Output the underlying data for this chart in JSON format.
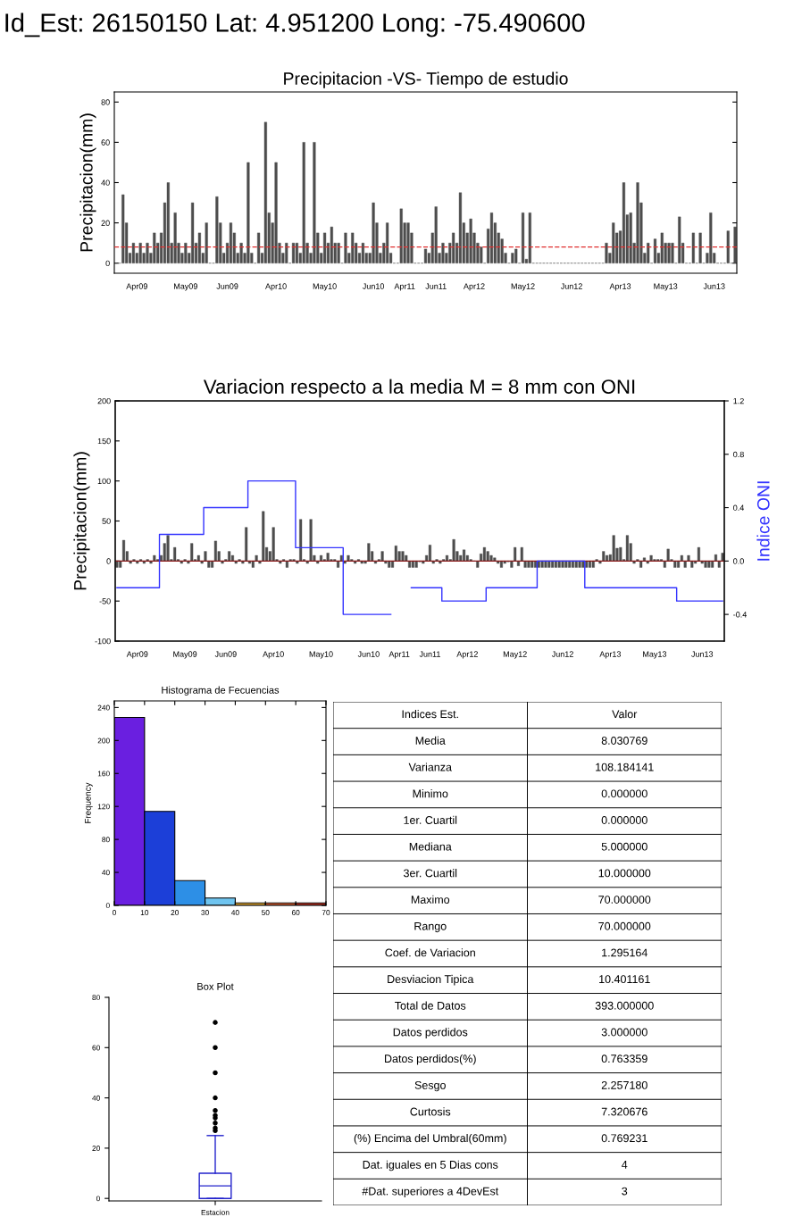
{
  "chart_data": [
    {
      "type": "bar",
      "title": "Precipitacion -VS- Tiempo de estudio",
      "ylabel": "Precipitacion(mm)",
      "annotations": [
        "Id_Est: 26150150 Lat: 4.951200 Long: -75.490600"
      ],
      "categories": [
        null,
        null,
        null,
        null,
        null,
        null,
        "Apr09",
        null,
        null,
        null,
        null,
        null,
        null,
        null,
        null,
        null,
        null,
        null,
        null,
        null,
        "May09",
        null,
        null,
        null,
        null,
        null,
        null,
        null,
        null,
        null,
        null,
        null,
        "Jun09",
        null,
        null,
        null,
        null,
        null,
        null,
        null,
        null,
        null,
        null,
        null,
        null,
        null,
        "Apr10",
        null,
        null,
        null,
        null,
        null,
        null,
        null,
        null,
        null,
        null,
        null,
        null,
        null,
        "May10",
        null,
        null,
        null,
        null,
        null,
        null,
        null,
        null,
        null,
        null,
        null,
        null,
        null,
        "Jun10",
        null,
        null,
        null,
        null,
        null,
        null,
        null,
        null,
        "Apr11",
        null,
        null,
        null,
        null,
        null,
        null,
        null,
        null,
        "Jun11",
        null,
        null,
        null,
        null,
        null,
        null,
        null,
        null,
        null,
        null,
        "Apr12",
        null,
        null,
        null,
        null,
        null,
        null,
        null,
        null,
        null,
        null,
        null,
        null,
        null,
        "May12",
        null,
        null,
        null,
        null,
        null,
        null,
        null,
        null,
        null,
        null,
        null,
        null,
        null,
        "Jun12",
        null,
        null,
        null,
        null,
        null,
        null,
        null,
        null,
        null,
        null,
        null,
        null,
        null,
        "Apr13",
        null,
        null,
        null,
        null,
        null,
        null,
        null,
        null,
        null,
        null,
        null,
        null,
        "May13",
        null,
        null,
        null,
        null,
        null,
        null,
        null,
        null,
        null,
        null,
        null,
        null,
        null,
        "Jun13",
        null,
        null,
        null,
        null,
        null,
        null
      ],
      "values": [
        0,
        0,
        34,
        20,
        5,
        10,
        5,
        10,
        5,
        10,
        5,
        15,
        10,
        15,
        30,
        40,
        10,
        25,
        10,
        5,
        10,
        5,
        30,
        10,
        15,
        5,
        20,
        0,
        0,
        33,
        20,
        5,
        10,
        20,
        15,
        5,
        10,
        5,
        50,
        5,
        0,
        15,
        5,
        70,
        25,
        20,
        50,
        10,
        5,
        10,
        0,
        10,
        10,
        5,
        60,
        10,
        5,
        60,
        15,
        5,
        15,
        10,
        18,
        10,
        10,
        0,
        15,
        5,
        15,
        10,
        5,
        10,
        5,
        5,
        30,
        20,
        5,
        10,
        20,
        5,
        0,
        0,
        27,
        20,
        20,
        15,
        0,
        0,
        0,
        7,
        5,
        15,
        28,
        5,
        10,
        5,
        10,
        15,
        10,
        35,
        20,
        15,
        22,
        15,
        10,
        8,
        0,
        17,
        25,
        20,
        15,
        12,
        5,
        0,
        5,
        7,
        0,
        25,
        2,
        25,
        0,
        0,
        0,
        0,
        0,
        0,
        0,
        0,
        0,
        0,
        0,
        0,
        0,
        0,
        0,
        0,
        0,
        0,
        0,
        0,
        0,
        10,
        5,
        20,
        15,
        16,
        40,
        24,
        25,
        10,
        40,
        30,
        5,
        10,
        0,
        12,
        5,
        15,
        10,
        10,
        10,
        0,
        23,
        10,
        0,
        0,
        15,
        0,
        15,
        0,
        5,
        25,
        5,
        0,
        0,
        0,
        16,
        0,
        18
      ],
      "color": "#4d4d4d",
      "ylim": [
        -5,
        85
      ],
      "yticks": [
        0,
        20,
        40,
        60,
        80
      ],
      "ref_lines": [
        {
          "axis": "y",
          "value": 8,
          "color": "#e03030",
          "line_style": "dashed"
        }
      ],
      "grid": false,
      "legend": false
    },
    {
      "type": "bar",
      "title": "Variacion respecto a la media M = 8 mm con ONI",
      "ylabel": "Precipitacion(mm)",
      "y2label": "Indice ONI",
      "categories": [
        null,
        null,
        null,
        null,
        null,
        null,
        "Apr09",
        null,
        null,
        null,
        null,
        null,
        null,
        null,
        null,
        null,
        null,
        null,
        null,
        null,
        "May09",
        null,
        null,
        null,
        null,
        null,
        null,
        null,
        null,
        null,
        null,
        null,
        "Jun09",
        null,
        null,
        null,
        null,
        null,
        null,
        null,
        null,
        null,
        null,
        null,
        null,
        null,
        "Apr10",
        null,
        null,
        null,
        null,
        null,
        null,
        null,
        null,
        null,
        null,
        null,
        null,
        null,
        "May10",
        null,
        null,
        null,
        null,
        null,
        null,
        null,
        null,
        null,
        null,
        null,
        null,
        null,
        "Jun10",
        null,
        null,
        null,
        null,
        null,
        null,
        null,
        null,
        "Apr11",
        null,
        null,
        null,
        null,
        null,
        null,
        null,
        null,
        "Jun11",
        null,
        null,
        null,
        null,
        null,
        null,
        null,
        null,
        null,
        null,
        "Apr12",
        null,
        null,
        null,
        null,
        null,
        null,
        null,
        null,
        null,
        null,
        null,
        null,
        null,
        "May12",
        null,
        null,
        null,
        null,
        null,
        null,
        null,
        null,
        null,
        null,
        null,
        null,
        null,
        "Jun12",
        null,
        null,
        null,
        null,
        null,
        null,
        null,
        null,
        null,
        null,
        null,
        null,
        null,
        "Apr13",
        null,
        null,
        null,
        null,
        null,
        null,
        null,
        null,
        null,
        null,
        null,
        null,
        "May13",
        null,
        null,
        null,
        null,
        null,
        null,
        null,
        null,
        null,
        null,
        null,
        null,
        null,
        "Jun13",
        null,
        null,
        null,
        null,
        null,
        null
      ],
      "series": [
        {
          "type": "bar",
          "color": "#4d4d4d",
          "values": [
            -8,
            -8,
            26,
            12,
            -3,
            2,
            -3,
            2,
            -3,
            2,
            -3,
            7,
            2,
            7,
            22,
            32,
            2,
            17,
            2,
            -3,
            2,
            -3,
            22,
            2,
            7,
            -3,
            12,
            -8,
            -8,
            25,
            12,
            -3,
            2,
            12,
            7,
            -3,
            2,
            -3,
            42,
            -3,
            -8,
            7,
            -3,
            62,
            17,
            12,
            42,
            2,
            -3,
            2,
            -8,
            2,
            2,
            -3,
            52,
            2,
            -3,
            52,
            7,
            -3,
            7,
            2,
            10,
            2,
            2,
            -8,
            7,
            -3,
            7,
            2,
            -3,
            2,
            -3,
            -3,
            22,
            12,
            -3,
            2,
            12,
            -3,
            -8,
            -8,
            19,
            12,
            12,
            7,
            -8,
            -8,
            -8,
            -1,
            -3,
            7,
            20,
            -3,
            2,
            -3,
            2,
            7,
            2,
            27,
            12,
            7,
            14,
            7,
            2,
            0,
            -8,
            9,
            17,
            12,
            7,
            4,
            -3,
            -8,
            -3,
            -1,
            -8,
            17,
            -6,
            17,
            -8,
            -8,
            -8,
            -8,
            -8,
            -8,
            -8,
            -8,
            -8,
            -8,
            -8,
            -8,
            -8,
            -8,
            -8,
            -8,
            -8,
            -8,
            -8,
            -8,
            -8,
            2,
            -3,
            12,
            7,
            8,
            32,
            16,
            17,
            2,
            32,
            22,
            -3,
            2,
            -8,
            4,
            -3,
            7,
            2,
            2,
            2,
            -8,
            15,
            2,
            -8,
            -8,
            7,
            -8,
            7,
            -8,
            -3,
            17,
            -3,
            -8,
            -8,
            -8,
            8,
            -8,
            10
          ]
        },
        {
          "type": "step",
          "axis": "y2",
          "color": "#3333ff",
          "values": [
            -0.2,
            -0.2,
            -0.2,
            -0.2,
            -0.2,
            -0.2,
            -0.2,
            -0.2,
            -0.2,
            -0.2,
            -0.2,
            -0.2,
            -0.2,
            0.2,
            0.2,
            0.2,
            0.2,
            0.2,
            0.2,
            0.2,
            0.2,
            0.2,
            0.2,
            0.2,
            0.2,
            0.2,
            0.4,
            0.4,
            0.4,
            0.4,
            0.4,
            0.4,
            0.4,
            0.4,
            0.4,
            0.4,
            0.4,
            0.4,
            0.4,
            0.6,
            0.6,
            0.6,
            0.6,
            0.6,
            0.6,
            0.6,
            0.6,
            0.6,
            0.6,
            0.6,
            0.6,
            0.6,
            0.6,
            0.1,
            0.1,
            0.1,
            0.1,
            0.1,
            0.1,
            0.1,
            0.1,
            0.1,
            0.1,
            0.1,
            0.1,
            0.1,
            0.1,
            -0.4,
            -0.4,
            -0.4,
            -0.4,
            -0.4,
            -0.4,
            -0.4,
            -0.4,
            -0.4,
            -0.4,
            -0.4,
            -0.4,
            -0.4,
            -0.4,
            null,
            null,
            null,
            null,
            null,
            null,
            -0.2,
            -0.2,
            -0.2,
            -0.2,
            -0.2,
            -0.2,
            -0.2,
            -0.2,
            -0.2,
            -0.3,
            -0.3,
            -0.3,
            -0.3,
            -0.3,
            -0.3,
            -0.3,
            -0.3,
            -0.3,
            -0.3,
            -0.3,
            -0.3,
            -0.3,
            -0.2,
            -0.2,
            -0.2,
            -0.2,
            -0.2,
            -0.2,
            -0.2,
            -0.2,
            -0.2,
            -0.2,
            -0.2,
            -0.2,
            -0.2,
            -0.2,
            -0.2,
            0.0,
            0.0,
            0.0,
            0.0,
            0.0,
            0.0,
            0.0,
            0.0,
            0.0,
            0.0,
            0.0,
            0.0,
            0.0,
            0.0,
            -0.2,
            -0.2,
            -0.2,
            -0.2,
            -0.2,
            -0.2,
            -0.2,
            -0.2,
            -0.2,
            -0.2,
            -0.2,
            -0.2,
            -0.2,
            -0.2,
            -0.2,
            -0.2,
            -0.2,
            -0.2,
            -0.2,
            -0.2,
            -0.2,
            -0.2,
            -0.2,
            -0.2,
            -0.2,
            -0.2,
            -0.2,
            -0.3,
            -0.3,
            -0.3,
            -0.3,
            -0.3,
            -0.3,
            -0.3,
            -0.3,
            -0.3,
            -0.3,
            -0.3,
            -0.3,
            -0.3,
            -0.3
          ]
        }
      ],
      "ylim": [
        -100,
        200
      ],
      "yticks": [
        -100,
        -50,
        0,
        50,
        100,
        150,
        200
      ],
      "y2lim": [
        -0.6,
        1.2
      ],
      "y2ticks": [
        -0.4,
        {
          "value": 0.0,
          "label": "0.0"
        },
        0.4,
        0.8,
        1.2
      ],
      "ref_lines": [
        {
          "axis": "y",
          "value": 0,
          "color": "#8b1a1a",
          "line_style": "solid"
        }
      ],
      "grid": false,
      "legend": false
    },
    {
      "type": "histogram",
      "title": "Histograma de Fecuencias",
      "ylabel": "Frequency",
      "bins": [
        0,
        10,
        20,
        30,
        40,
        50,
        60,
        70
      ],
      "values": [
        228,
        114,
        30,
        9,
        3,
        3,
        3
      ],
      "colors": [
        "#6a1fe0",
        "#1c3fd8",
        "#2d8fe6",
        "#6fc4ef",
        "#f0b030",
        "#e06030",
        "#c03020"
      ],
      "xlim": [
        0,
        70
      ],
      "xticks": [
        0,
        10,
        20,
        30,
        40,
        50,
        60,
        70
      ],
      "ylim": [
        0,
        248
      ],
      "yticks": [
        0,
        40,
        80,
        120,
        160,
        200,
        240
      ],
      "grid": false,
      "legend": false
    },
    {
      "type": "box",
      "title": "Box Plot",
      "categories": [
        "Estacion"
      ],
      "color": "#2222cc",
      "boxes": [
        {
          "low": 0,
          "q1": 0,
          "median": 5,
          "q3": 10,
          "high": 25,
          "outliers": [
            27,
            28,
            30,
            32,
            33,
            35,
            40,
            50,
            60,
            70
          ]
        }
      ],
      "ylim": [
        -1,
        80
      ],
      "yticks": [
        0,
        20,
        40,
        60,
        80
      ],
      "grid": false,
      "legend": false
    },
    {
      "type": "other",
      "annotations": [
        "Indices Est.",
        "Valor"
      ],
      "categories": [
        "Media",
        "Varianza",
        "Minimo",
        "1er. Cuartil",
        "Mediana",
        "3er. Cuartil",
        "Maximo",
        "Rango",
        "Coef. de Variacion",
        "Desviacion Tipica",
        "Total de Datos",
        "Datos perdidos",
        "Datos perdidos(%)",
        "Sesgo",
        "Curtosis",
        "(%) Encima del Umbral(60mm)",
        "Dat. iguales en 5 Dias cons",
        "#Dat. superiores a 4DevEst"
      ],
      "values": [
        8.030769,
        108.184141,
        0,
        0,
        5,
        10,
        70,
        70,
        1.295164,
        10.401161,
        393,
        3,
        0.763359,
        2.25718,
        7.320676,
        0.769231,
        4,
        3
      ],
      "value_labels": [
        "8.030769",
        "108.184141",
        "0.000000",
        "0.000000",
        "5.000000",
        "10.000000",
        "70.000000",
        "70.000000",
        "1.295164",
        "10.401161",
        "393.000000",
        "3.000000",
        "0.763359",
        "2.257180",
        "7.320676",
        "0.769231",
        "4",
        "3"
      ]
    }
  ]
}
